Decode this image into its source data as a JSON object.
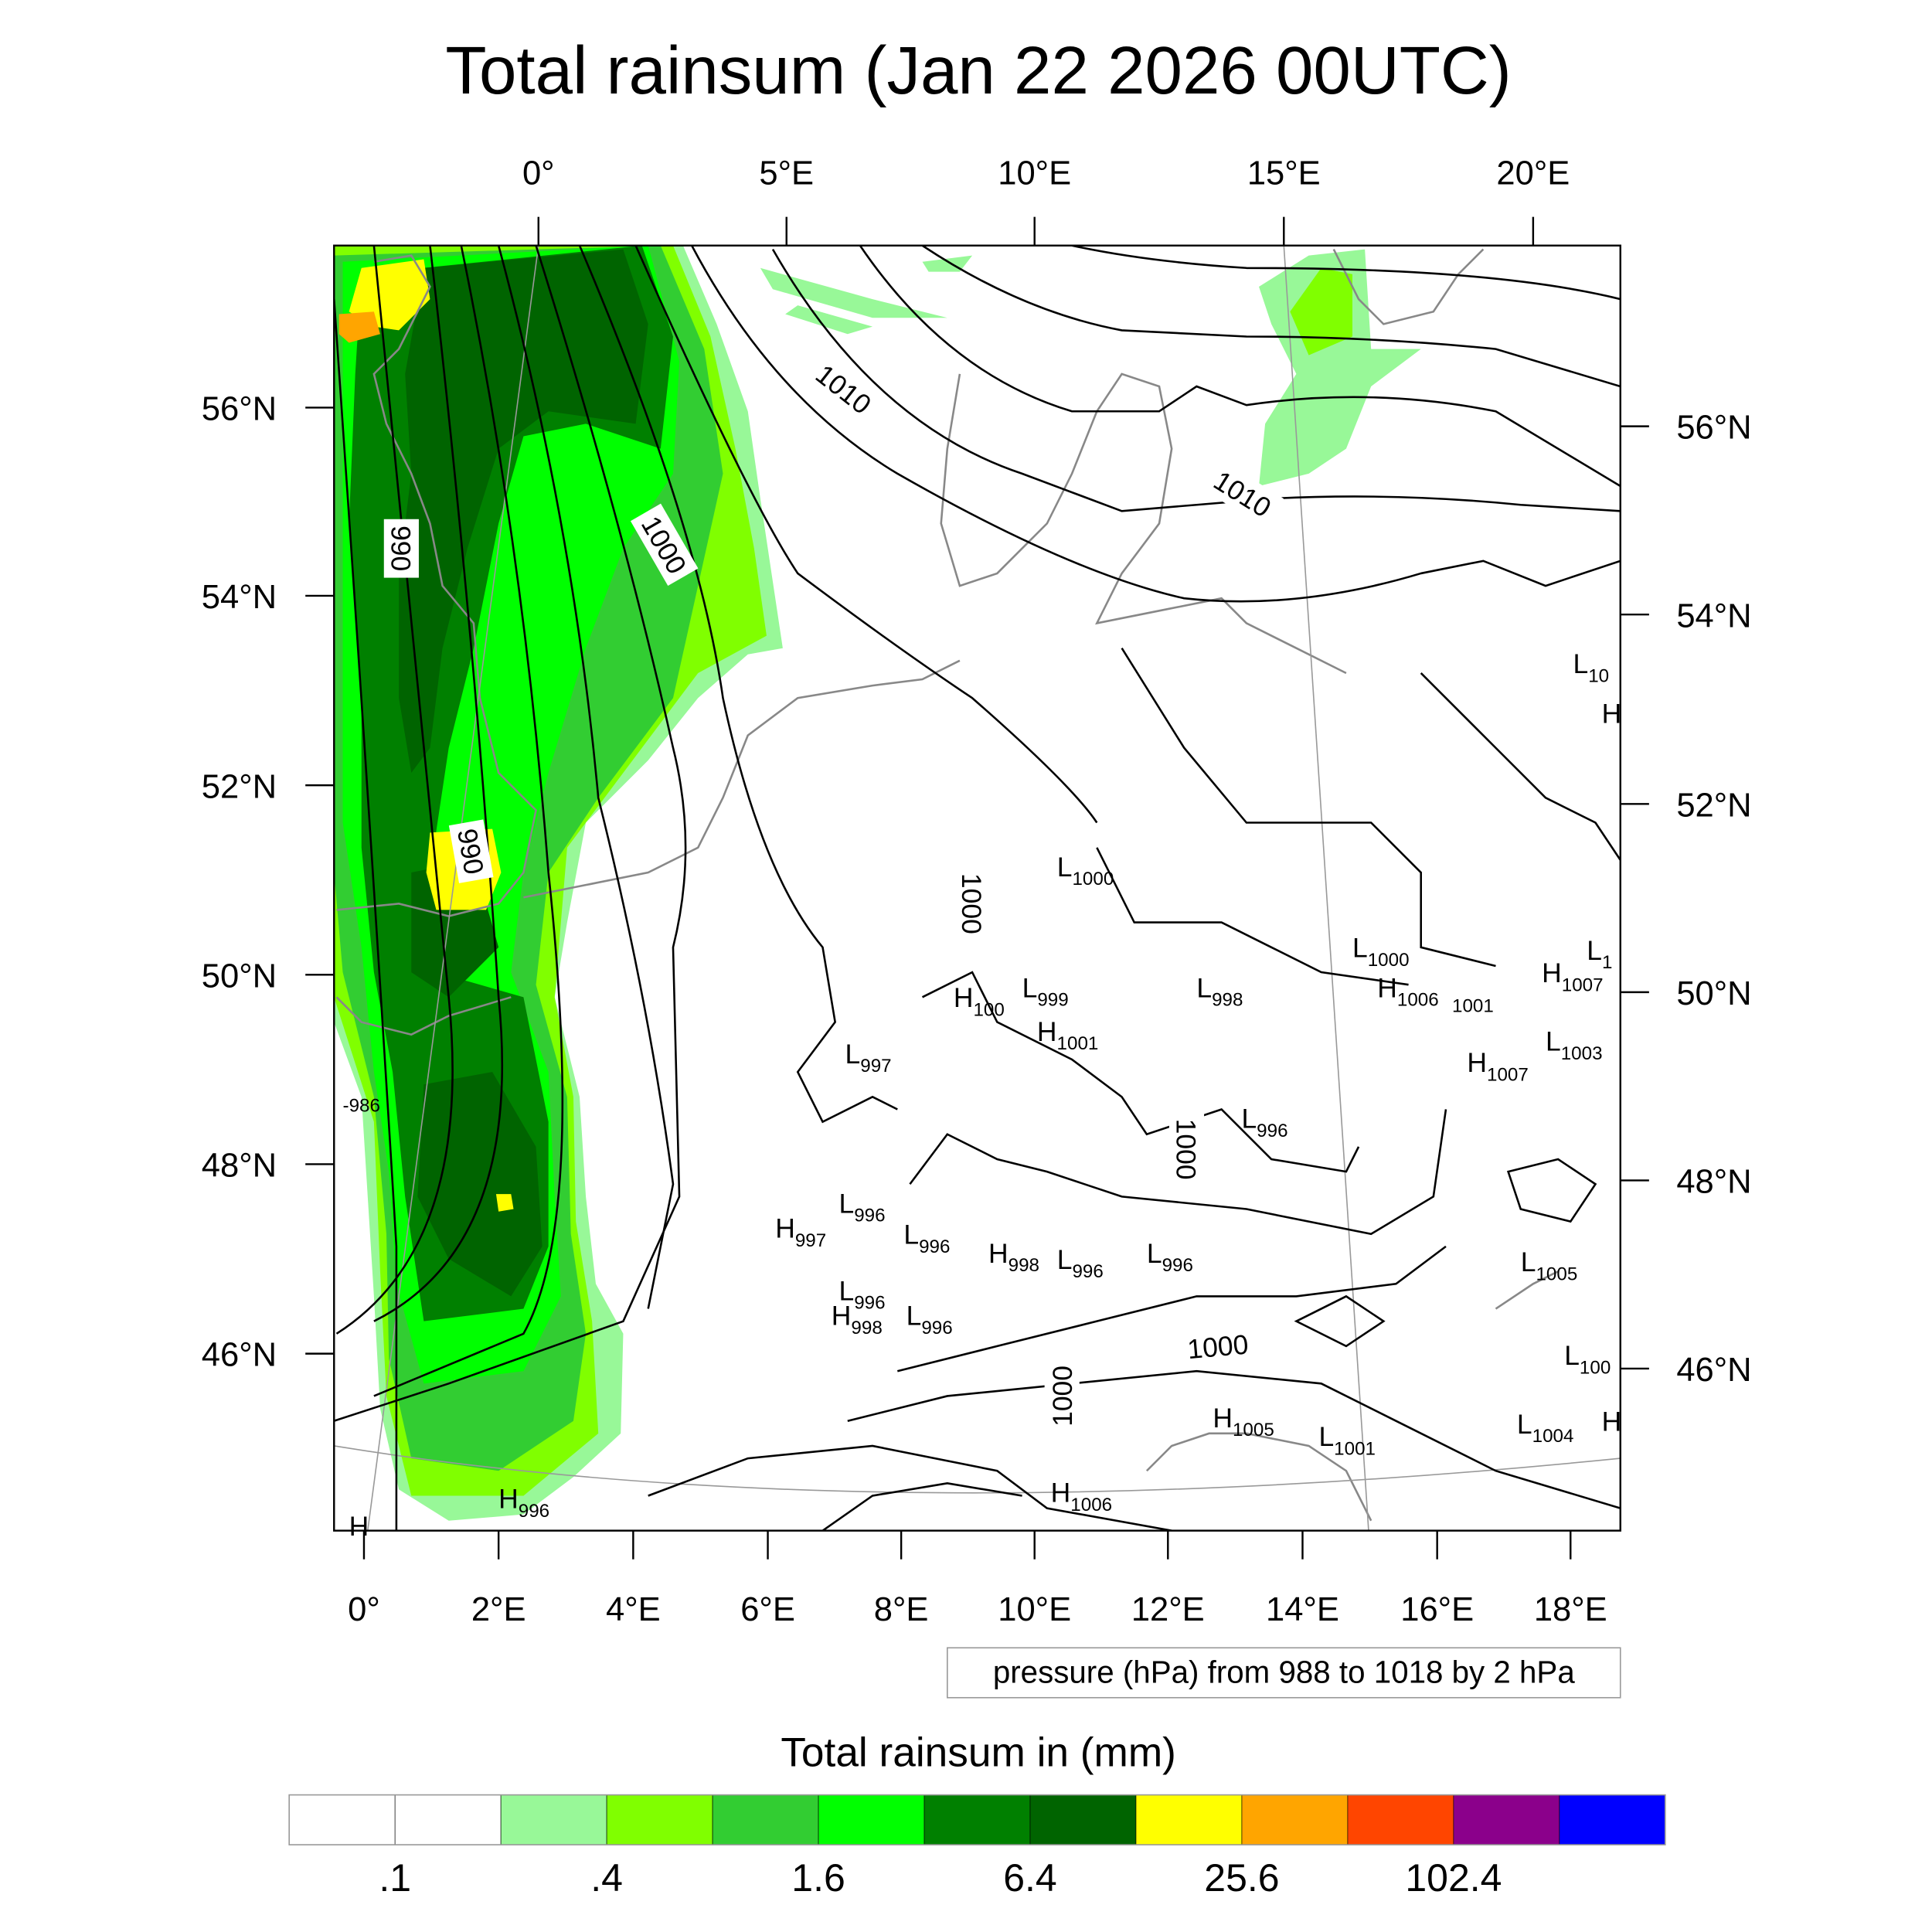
{
  "title": "Total rainsum (Jan 22 2026 00UTC)",
  "top_lon_labels": [
    "0°",
    "5°E",
    "10°E",
    "15°E",
    "20°E"
  ],
  "left_lat_labels": [
    "56°N",
    "54°N",
    "52°N",
    "50°N",
    "48°N",
    "46°N"
  ],
  "right_lat_labels": [
    "56°N",
    "54°N",
    "52°N",
    "50°N",
    "48°N",
    "46°N"
  ],
  "bottom_lon_labels": [
    "0°",
    "2°E",
    "4°E",
    "6°E",
    "8°E",
    "10°E",
    "12°E",
    "14°E",
    "16°E",
    "18°E"
  ],
  "contour_labels": [
    "1010",
    "1010",
    "1000",
    "990",
    "990",
    "1000",
    "1000",
    "1000",
    "1000",
    "-986"
  ],
  "pressure_markers": [
    {
      "type": "L",
      "value": "1000"
    },
    {
      "type": "L",
      "value": "1000"
    },
    {
      "type": "L",
      "value": "1"
    },
    {
      "type": "H",
      "value": "1007"
    },
    {
      "type": "H",
      "value": "100"
    },
    {
      "type": "L",
      "value": "999"
    },
    {
      "type": "L",
      "value": "998"
    },
    {
      "type": "H",
      "value": "1006"
    },
    {
      "type": "",
      "value": "1001"
    },
    {
      "type": "H",
      "value": "1001"
    },
    {
      "type": "L",
      "value": "1003"
    },
    {
      "type": "H",
      "value": "1007"
    },
    {
      "type": "L",
      "value": "997"
    },
    {
      "type": "L",
      "value": "996"
    },
    {
      "type": "L",
      "value": "996"
    },
    {
      "type": "H",
      "value": "997"
    },
    {
      "type": "L",
      "value": "996"
    },
    {
      "type": "H",
      "value": "998"
    },
    {
      "type": "L",
      "value": "996"
    },
    {
      "type": "L",
      "value": "996"
    },
    {
      "type": "L",
      "value": "1005"
    },
    {
      "type": "L",
      "value": "996"
    },
    {
      "type": "H",
      "value": "998"
    },
    {
      "type": "L",
      "value": "996"
    },
    {
      "type": "L",
      "value": "100"
    },
    {
      "type": "H",
      "value": "1005"
    },
    {
      "type": "L",
      "value": "1004"
    },
    {
      "type": "H",
      "value": ""
    },
    {
      "type": "L",
      "value": "1001"
    },
    {
      "type": "H",
      "value": "1006"
    },
    {
      "type": "H",
      "value": "996"
    },
    {
      "type": "H",
      "value": ""
    },
    {
      "type": "L",
      "value": "10"
    },
    {
      "type": "H",
      "value": ""
    }
  ],
  "legend_text": "pressure (hPa) from 988 to 1018 by 2 hPa",
  "chart_data": {
    "type": "heatmap",
    "title": "Total rainsum (Jan 22 2026 00UTC)",
    "colorbar_title": "Total rainsum in (mm)",
    "colorbar_labels": [
      ".1",
      ".4",
      "1.6",
      "6.4",
      "25.6",
      "102.4"
    ],
    "colorbar_levels": [
      0.1,
      0.2,
      0.4,
      0.8,
      1.6,
      3.2,
      6.4,
      12.8,
      25.6,
      51.2,
      102.4,
      204.8
    ],
    "colorbar_colors": [
      "#ffffff",
      "#ffffff",
      "#98f898",
      "#80ff00",
      "#32cd32",
      "#00ff00",
      "#008000",
      "#006400",
      "#ffff00",
      "#ffa500",
      "#ff4500",
      "#8b008b",
      "#0000ff"
    ],
    "lon_range": [
      -0.5,
      18.5
    ],
    "lat_range": [
      44.5,
      57.5
    ],
    "contour_variable": "pressure (hPa)",
    "contour_range": [
      988,
      1018
    ],
    "contour_interval": 2
  }
}
